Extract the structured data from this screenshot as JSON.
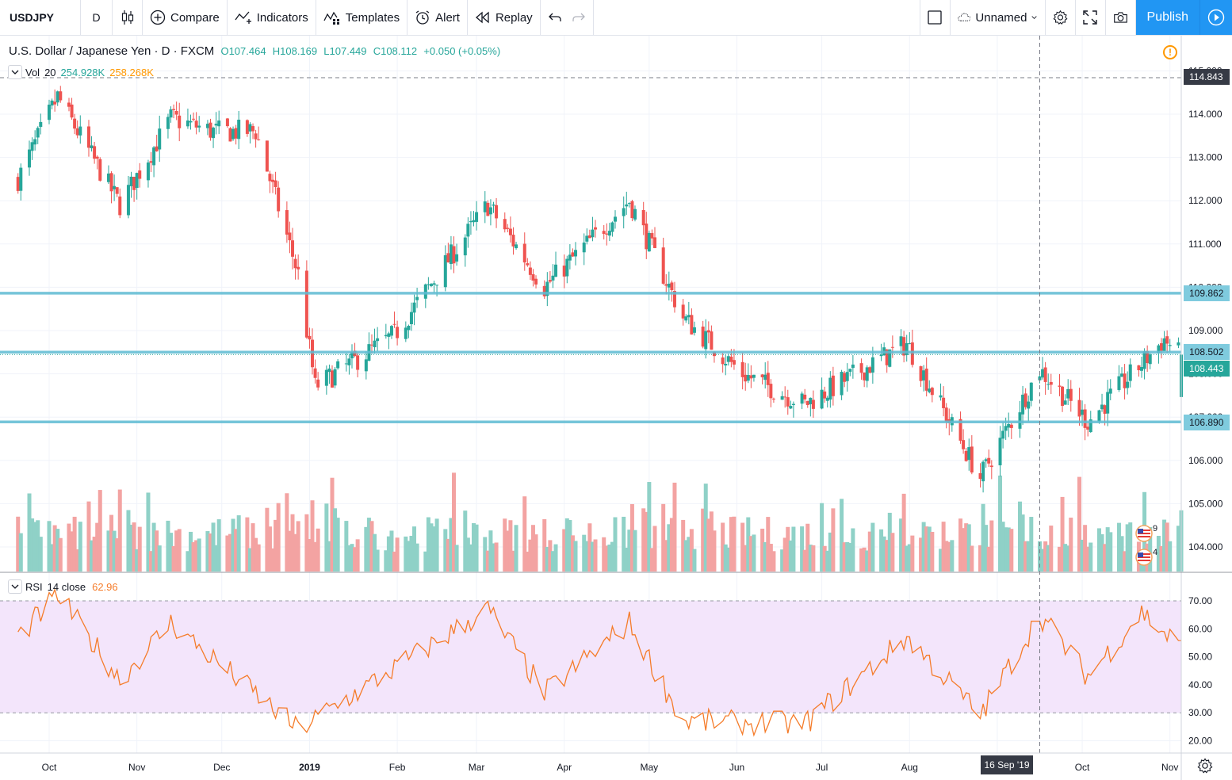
{
  "toolbar": {
    "symbol": "USDJPY",
    "interval": "D",
    "compare_label": "Compare",
    "indicators_label": "Indicators",
    "templates_label": "Templates",
    "alert_label": "Alert",
    "replay_label": "Replay",
    "layout_name": "Unnamed",
    "publish_label": "Publish"
  },
  "legend": {
    "title": "U.S. Dollar / Japanese Yen · D · FXCM",
    "open": "O107.464",
    "high": "H108.169",
    "low": "L107.449",
    "close": "C108.112",
    "change": "+0.050 (+0.05%)"
  },
  "volume_legend": {
    "name": "Vol",
    "length": "20",
    "value1": "254.928K",
    "value2": "258.268K"
  },
  "rsi_legend": {
    "name": "RSI",
    "params": "14 close",
    "value": "62.96"
  },
  "price_axis": {
    "ticks": [
      "115.000",
      "114.000",
      "113.000",
      "112.000",
      "111.000",
      "110.000",
      "109.000",
      "108.000",
      "107.000",
      "106.000",
      "105.000",
      "104.000"
    ],
    "tags": {
      "crosshair": "114.843",
      "level_high": "109.862",
      "level_mid": "108.502",
      "last_price": "108.443",
      "level_low": "106.890"
    }
  },
  "rsi_axis": {
    "ticks": [
      "70.00",
      "60.00",
      "50.00",
      "40.00",
      "30.00",
      "20.00"
    ]
  },
  "time_axis": {
    "labels": [
      "Oct",
      "Nov",
      "Dec",
      "2019",
      "Feb",
      "Mar",
      "Apr",
      "May",
      "Jun",
      "Jul",
      "Aug",
      "Sep",
      "Oct",
      "Nov"
    ],
    "crosshair_date": "16 Sep '19"
  },
  "badges": {
    "flag1_count": "9",
    "flag2_count": "4"
  },
  "colors": {
    "up": "#26a69a",
    "down": "#ef5350",
    "level_line": "#5fbcd3",
    "rsi_line": "#f57c2a",
    "rsi_band": "#f3e5fb",
    "accent": "#2196f3"
  },
  "chart_data": {
    "type": "candlestick",
    "symbol": "USDJPY",
    "period": "D",
    "horizontal_levels": [
      109.862,
      108.502,
      106.89
    ],
    "last_price": 108.443,
    "price_range": [
      103.5,
      115.4
    ],
    "rsi_range": [
      17,
      75
    ],
    "rsi_bands": [
      30,
      70
    ],
    "closes_approx": [
      {
        "date": "2018-09-20",
        "close": 112.5
      },
      {
        "date": "2018-10-04",
        "close": 114.4
      },
      {
        "date": "2018-10-26",
        "close": 111.9
      },
      {
        "date": "2018-11-13",
        "close": 113.9
      },
      {
        "date": "2018-11-28",
        "close": 113.6
      },
      {
        "date": "2018-12-13",
        "close": 113.6
      },
      {
        "date": "2018-12-28",
        "close": 110.3
      },
      {
        "date": "2019-01-03",
        "close": 107.7
      },
      {
        "date": "2019-01-31",
        "close": 108.9
      },
      {
        "date": "2019-03-05",
        "close": 111.9
      },
      {
        "date": "2019-03-25",
        "close": 110.0
      },
      {
        "date": "2019-04-24",
        "close": 112.0
      },
      {
        "date": "2019-05-13",
        "close": 109.3
      },
      {
        "date": "2019-06-03",
        "close": 108.0
      },
      {
        "date": "2019-06-25",
        "close": 107.3
      },
      {
        "date": "2019-07-31",
        "close": 108.7
      },
      {
        "date": "2019-08-26",
        "close": 105.6
      },
      {
        "date": "2019-09-16",
        "close": 108.1
      },
      {
        "date": "2019-10-03",
        "close": 106.9
      },
      {
        "date": "2019-10-30",
        "close": 108.8
      },
      {
        "date": "2019-11-05",
        "close": 108.4
      }
    ],
    "rsi_approx": [
      {
        "date": "2018-10-04",
        "value": 72
      },
      {
        "date": "2018-10-26",
        "value": 42
      },
      {
        "date": "2018-11-13",
        "value": 62
      },
      {
        "date": "2018-12-28",
        "value": 24
      },
      {
        "date": "2019-03-05",
        "value": 67
      },
      {
        "date": "2019-03-25",
        "value": 37
      },
      {
        "date": "2019-04-24",
        "value": 62
      },
      {
        "date": "2019-05-13",
        "value": 27
      },
      {
        "date": "2019-06-25",
        "value": 26
      },
      {
        "date": "2019-07-31",
        "value": 57
      },
      {
        "date": "2019-08-26",
        "value": 29
      },
      {
        "date": "2019-09-16",
        "value": 65
      },
      {
        "date": "2019-10-03",
        "value": 43
      },
      {
        "date": "2019-10-22",
        "value": 66
      },
      {
        "date": "2019-11-05",
        "value": 53
      }
    ]
  }
}
